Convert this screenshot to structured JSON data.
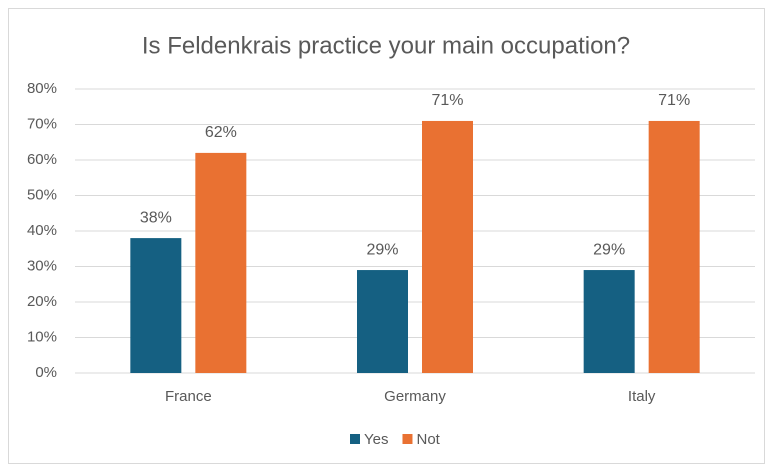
{
  "chart_data": {
    "type": "bar",
    "title": "Is Feldenkrais practice your main occupation?",
    "categories": [
      "France",
      "Germany",
      "Italy"
    ],
    "series": [
      {
        "name": "Yes",
        "color": "#156082",
        "values": [
          38,
          29,
          29
        ],
        "value_labels": [
          "38%",
          "29%",
          "29%"
        ]
      },
      {
        "name": "Not",
        "color": "#e97132",
        "values": [
          62,
          71,
          71
        ],
        "value_labels": [
          "62%",
          "71%",
          "71%"
        ]
      }
    ],
    "ylim": [
      0,
      80
    ],
    "yticks": [
      {
        "value": 0,
        "label": "0%"
      },
      {
        "value": 10,
        "label": "10%"
      },
      {
        "value": 20,
        "label": "20%"
      },
      {
        "value": 30,
        "label": "30%"
      },
      {
        "value": 40,
        "label": "40%"
      },
      {
        "value": 50,
        "label": "50%"
      },
      {
        "value": 60,
        "label": "60%"
      },
      {
        "value": 70,
        "label": "70%"
      },
      {
        "value": 80,
        "label": "80%"
      }
    ],
    "grid": true,
    "legend": "bottom"
  }
}
